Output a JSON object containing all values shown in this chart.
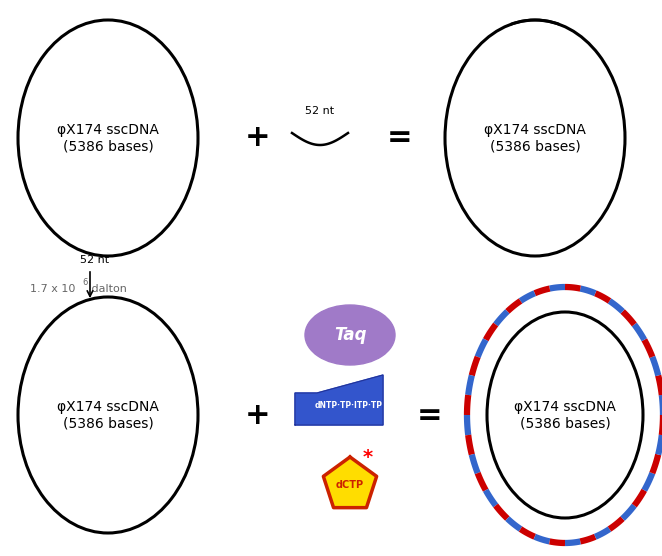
{
  "bg_color": "#ffffff",
  "text_color": "#000000",
  "label_main": "φX174 sscDNA\n(5386 bases)",
  "label_52nt": "52 nt",
  "label_plus": "+",
  "label_eq": "=",
  "label_taq": "Taq",
  "label_dCTP": "dCTP",
  "taq_color": "#a07ac8",
  "dNTP_color": "#3355cc",
  "dCTP_fill": "#ffdd00",
  "dCTP_border": "#cc2200",
  "dCTP_text": "#cc2200",
  "outer_blue": "#3366cc",
  "outer_red": "#cc0000",
  "dalton_color": "#666666",
  "font_label": 10,
  "font_small": 8,
  "font_op": 18
}
